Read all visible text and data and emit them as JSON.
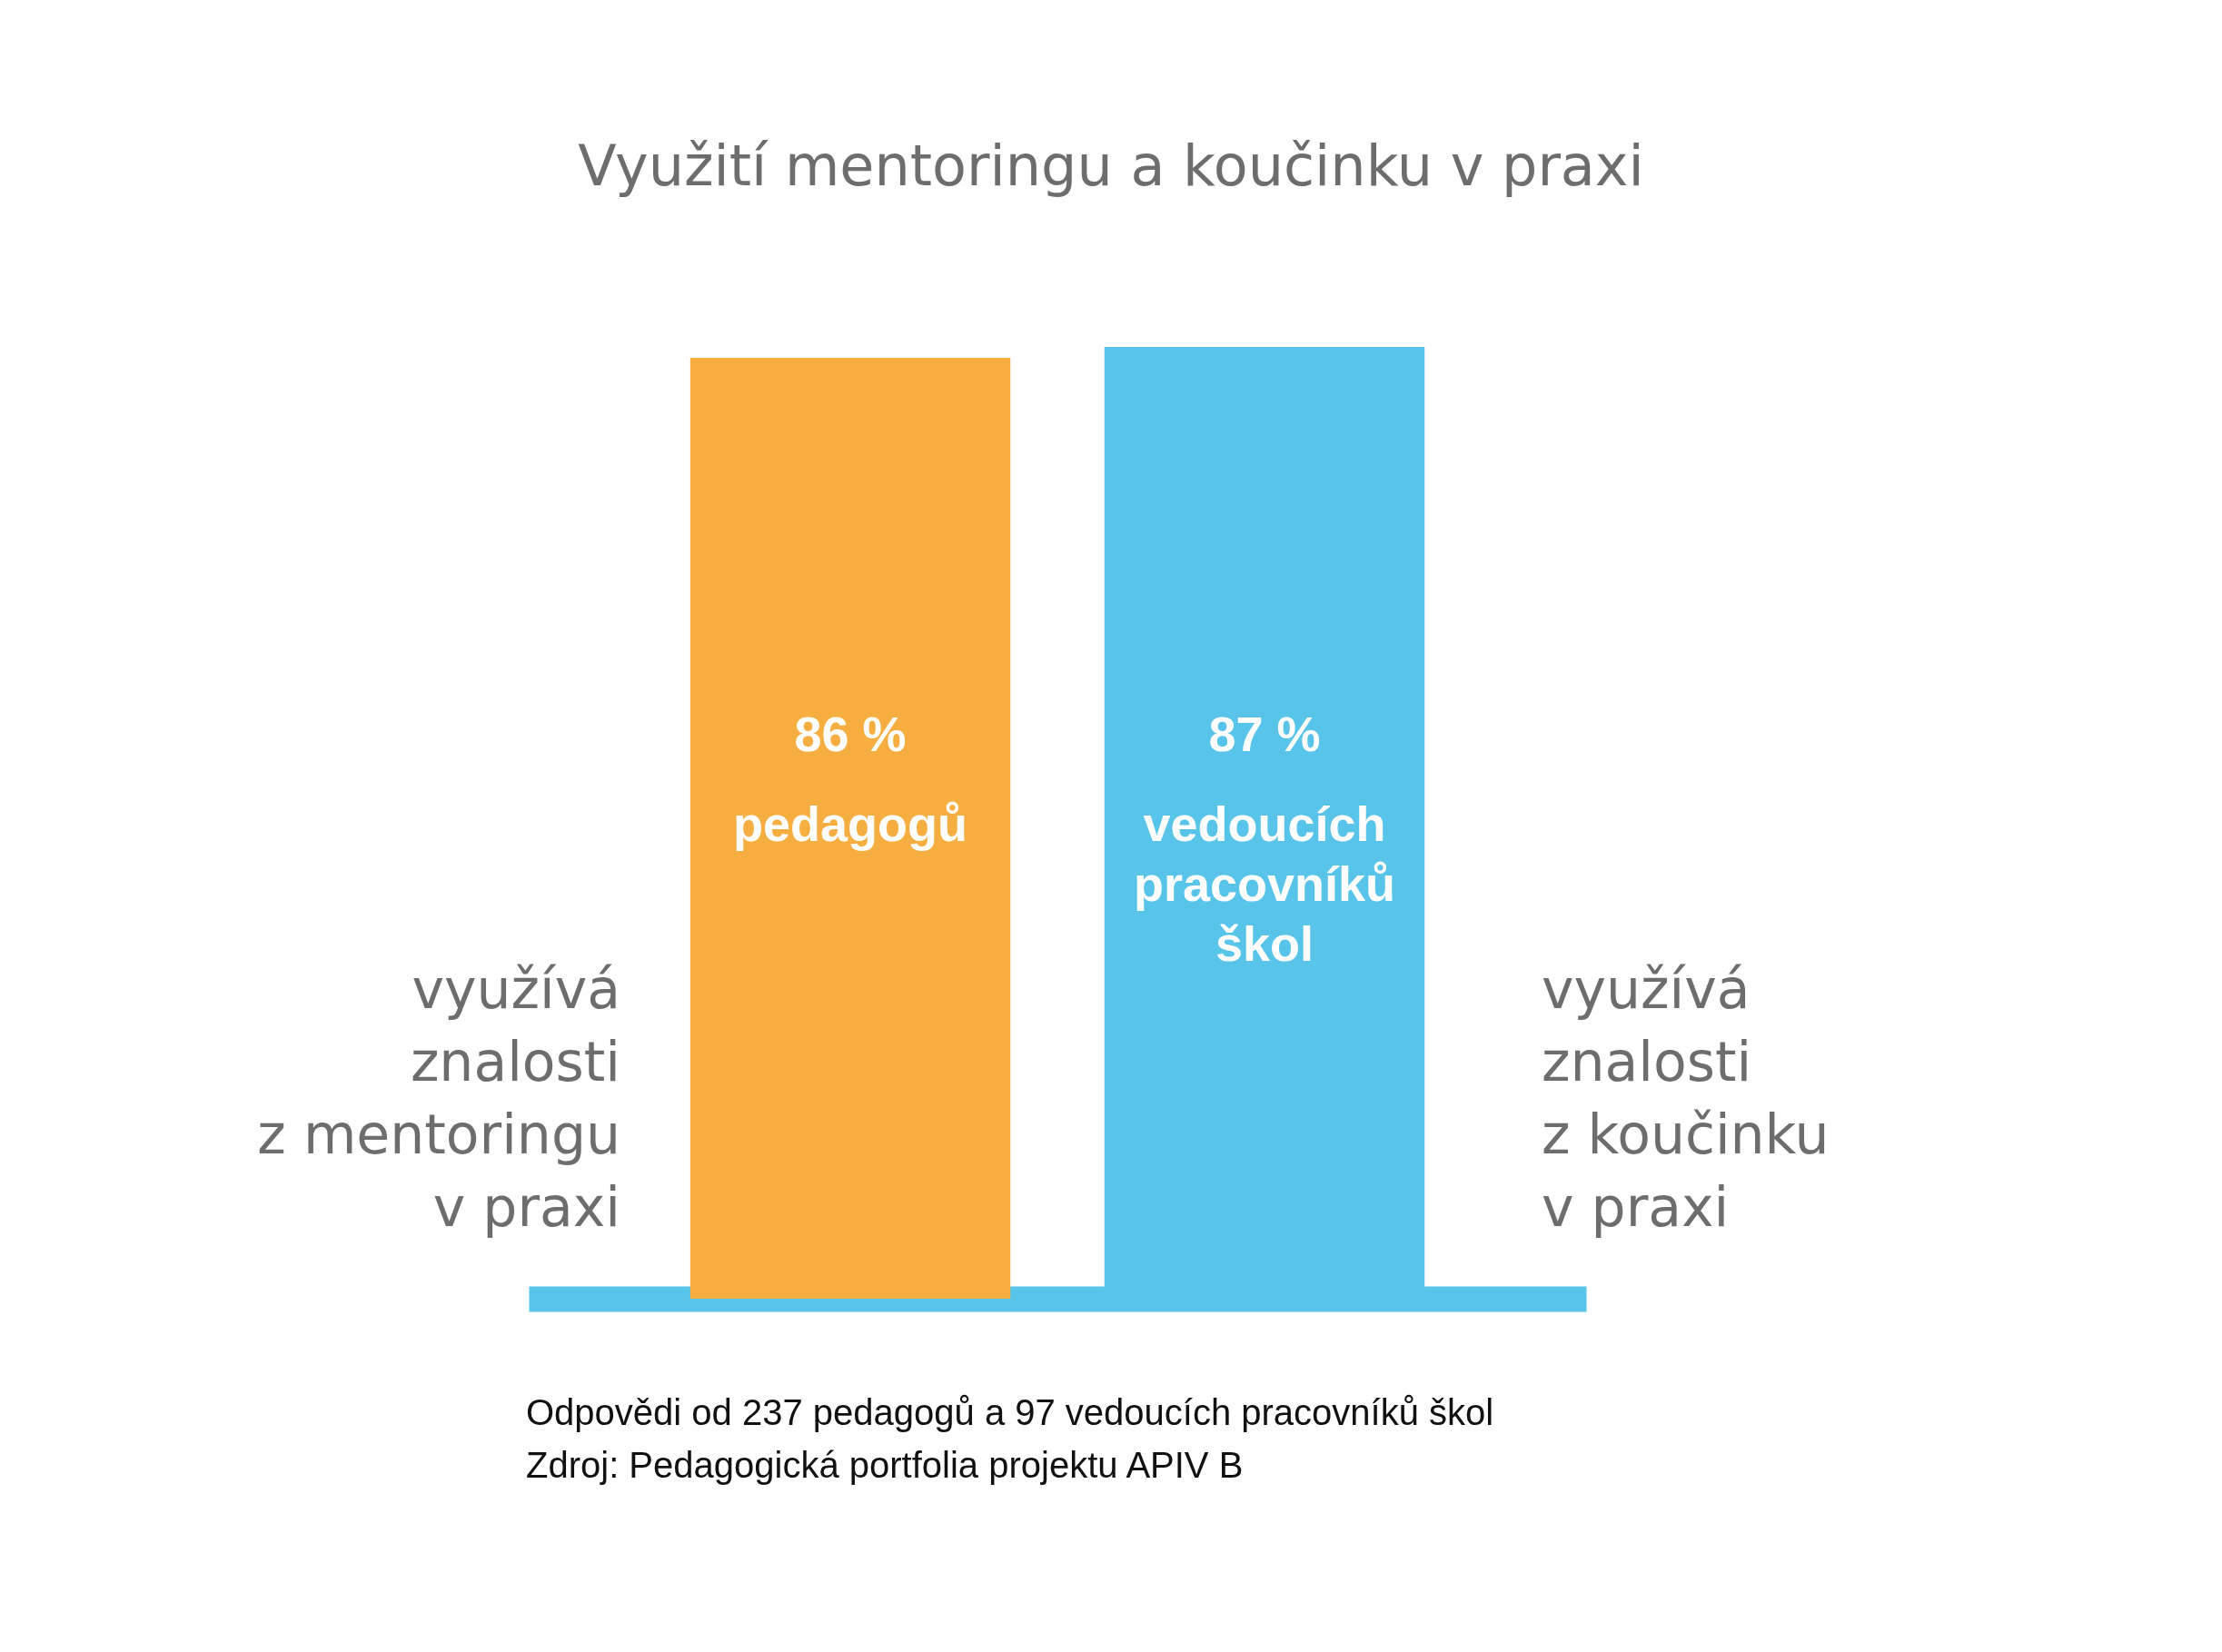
{
  "chart_data": {
    "type": "bar",
    "title": "Využití mentoringu a koučinku v praxi",
    "categories": [
      "pedagogů",
      "vedoucích pracovníků škol"
    ],
    "values": [
      86,
      87
    ],
    "colors": [
      "#f7ae41",
      "#58c4e9"
    ],
    "value_labels": [
      "86 %",
      "87 %"
    ],
    "annotations": [
      "využívá\nznalosti\nz mentoringu\nv praxi",
      "využívá\nznalosti\nz koučinku\nv praxi",
      "Odpovědi od 237 pedagogů a 97 vedoucích pracovníků škol\nZdroj: Pedagogická portfolia projektu APIV B"
    ]
  }
}
